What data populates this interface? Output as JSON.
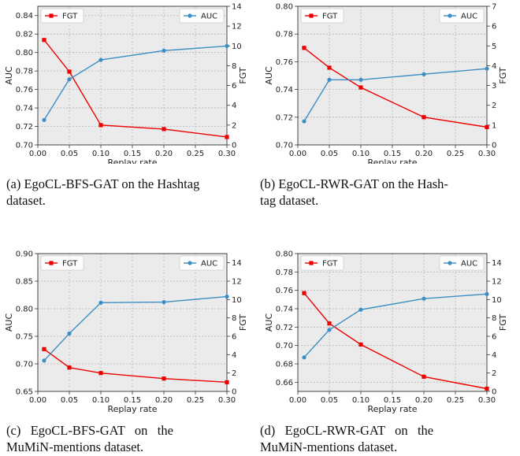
{
  "chart_data": [
    {
      "type": "line",
      "caption_line1": "(a) EgoCL-BFS-GAT on the Hashtag",
      "caption_line2": "dataset.",
      "xlabel": "Replay rate",
      "ylabel_left": "AUC",
      "ylabel_right": "FGT",
      "x": [
        0.01,
        0.05,
        0.1,
        0.2,
        0.3
      ],
      "xlim": [
        0.0,
        0.3
      ],
      "xticks": [
        "0.00",
        "0.05",
        "0.10",
        "0.15",
        "0.20",
        "0.25",
        "0.30"
      ],
      "ylim_left": [
        0.7,
        0.85
      ],
      "yticks_left": [
        "0.70",
        "0.72",
        "0.74",
        "0.76",
        "0.78",
        "0.80",
        "0.82",
        "0.84"
      ],
      "ylim_right": [
        0,
        14
      ],
      "yticks_right": [
        "0",
        "2",
        "4",
        "6",
        "8",
        "10",
        "12",
        "14"
      ],
      "grid": true,
      "legend_fgt": "upper-left",
      "legend_auc": "upper-right",
      "series": [
        {
          "name": "FGT",
          "axis": "right",
          "color": "#ee0000",
          "marker": "square",
          "values": [
            10.6,
            7.4,
            2.0,
            1.6,
            0.8
          ]
        },
        {
          "name": "AUC",
          "axis": "left",
          "color": "#3b8ec4",
          "marker": "circle",
          "values": [
            0.727,
            0.771,
            0.792,
            0.802,
            0.807
          ]
        }
      ]
    },
    {
      "type": "line",
      "caption_line1": "(b) EgoCL-RWR-GAT on the Hash-",
      "caption_line2": "tag dataset.",
      "xlabel": "Replay rate",
      "ylabel_left": "AUC",
      "ylabel_right": "FGT",
      "x": [
        0.01,
        0.05,
        0.1,
        0.2,
        0.3
      ],
      "xlim": [
        0.0,
        0.3
      ],
      "xticks": [
        "0.00",
        "0.05",
        "0.10",
        "0.15",
        "0.20",
        "0.25",
        "0.30"
      ],
      "ylim_left": [
        0.7,
        0.8
      ],
      "yticks_left": [
        "0.70",
        "0.72",
        "0.74",
        "0.76",
        "0.78",
        "0.80"
      ],
      "ylim_right": [
        0,
        7
      ],
      "yticks_right": [
        "0",
        "1",
        "2",
        "3",
        "4",
        "5",
        "6",
        "7"
      ],
      "grid": true,
      "legend_fgt": "upper-left",
      "legend_auc": "upper-right",
      "series": [
        {
          "name": "FGT",
          "axis": "right",
          "color": "#ee0000",
          "marker": "square",
          "values": [
            4.9,
            3.9,
            2.9,
            1.4,
            0.9
          ]
        },
        {
          "name": "AUC",
          "axis": "left",
          "color": "#3b8ec4",
          "marker": "circle",
          "values": [
            0.717,
            0.747,
            0.747,
            0.751,
            0.755
          ]
        }
      ]
    },
    {
      "type": "line",
      "caption_line1": "(c)   EgoCL-BFS-GAT   on   the",
      "caption_line2": "MuMiN-mentions dataset.",
      "xlabel": "Replay rate",
      "ylabel_left": "AUC",
      "ylabel_right": "FGT",
      "x": [
        0.01,
        0.05,
        0.1,
        0.2,
        0.3
      ],
      "xlim": [
        0.0,
        0.3
      ],
      "xticks": [
        "0.00",
        "0.05",
        "0.10",
        "0.15",
        "0.20",
        "0.25",
        "0.30"
      ],
      "ylim_left": [
        0.65,
        0.9
      ],
      "yticks_left": [
        "0.65",
        "0.70",
        "0.75",
        "0.80",
        "0.85",
        "0.90"
      ],
      "ylim_right": [
        0,
        15
      ],
      "yticks_right": [
        "0",
        "2",
        "4",
        "6",
        "8",
        "10",
        "12",
        "14"
      ],
      "grid": true,
      "legend_fgt": "upper-left",
      "legend_auc": "upper-right",
      "series": [
        {
          "name": "FGT",
          "axis": "right",
          "color": "#ee0000",
          "marker": "square",
          "values": [
            4.6,
            2.6,
            2.0,
            1.4,
            1.0
          ]
        },
        {
          "name": "AUC",
          "axis": "left",
          "color": "#3b8ec4",
          "marker": "circle",
          "values": [
            0.706,
            0.755,
            0.811,
            0.812,
            0.822
          ]
        }
      ]
    },
    {
      "type": "line",
      "caption_line1": "(d)   EgoCL-RWR-GAT   on   the",
      "caption_line2": "MuMiN-mentions dataset.",
      "xlabel": "Replay rate",
      "ylabel_left": "AUC",
      "ylabel_right": "FGT",
      "x": [
        0.01,
        0.05,
        0.1,
        0.2,
        0.3
      ],
      "xlim": [
        0.0,
        0.3
      ],
      "xticks": [
        "0.00",
        "0.05",
        "0.10",
        "0.15",
        "0.20",
        "0.25",
        "0.30"
      ],
      "ylim_left": [
        0.65,
        0.8
      ],
      "yticks_left": [
        "0.66",
        "0.68",
        "0.70",
        "0.72",
        "0.74",
        "0.76",
        "0.78",
        "0.80"
      ],
      "ylim_right": [
        0,
        15
      ],
      "yticks_right": [
        "0",
        "2",
        "4",
        "6",
        "8",
        "10",
        "12",
        "14"
      ],
      "grid": true,
      "legend_fgt": "upper-left",
      "legend_auc": "upper-right",
      "series": [
        {
          "name": "FGT",
          "axis": "right",
          "color": "#ee0000",
          "marker": "square",
          "values": [
            10.7,
            7.4,
            5.1,
            1.6,
            0.3
          ]
        },
        {
          "name": "AUC",
          "axis": "left",
          "color": "#3b8ec4",
          "marker": "circle",
          "values": [
            0.687,
            0.717,
            0.739,
            0.751,
            0.756
          ]
        }
      ]
    }
  ]
}
